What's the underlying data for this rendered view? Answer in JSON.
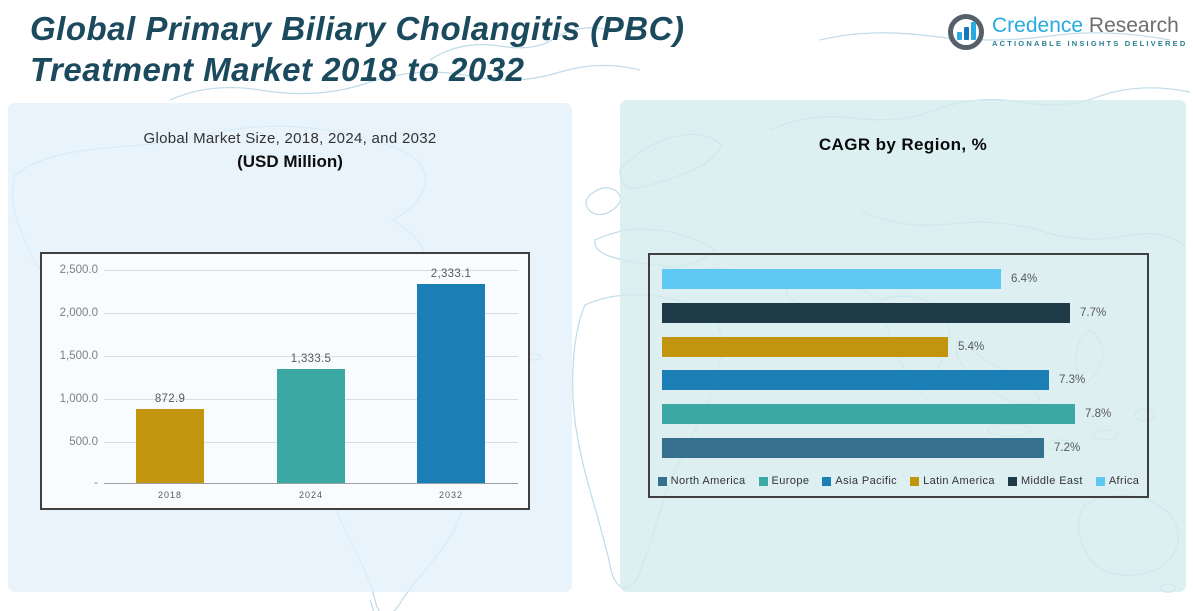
{
  "page": {
    "title_line1": "Global Primary Biliary Cholangitis (PBC)",
    "title_line2": "Treatment Market 2018 to 2032"
  },
  "logo": {
    "brand_first": "Credence",
    "brand_second": " Research",
    "tagline": "ACTIONABLE INSIGHTS DELIVERED",
    "icon": "bar-chart-in-circle-icon",
    "brand_color": "#29abe2",
    "secondary_color": "#6d6e71"
  },
  "left_chart": {
    "subtitle": "Global Market Size, 2018, 2024, and 2032",
    "unit_label": "(USD Million)"
  },
  "right_chart": {
    "title": "CAGR by Region, %"
  },
  "colors": {
    "gold": "#c3940e",
    "teal": "#3ba8a3",
    "blue": "#1b7fb5",
    "steel_blue": "#35708e",
    "dark_navy": "#1e3a47",
    "sky_blue": "#5ec7f2",
    "title_teal": "#1b4a5e",
    "panel_left": "#e1f0fa",
    "panel_right": "#d3ebee"
  },
  "chart_data": [
    {
      "type": "bar",
      "title": "Global Market Size, 2018, 2024, and 2032 (USD Million)",
      "categories": [
        "2018",
        "2024",
        "2032"
      ],
      "values": [
        872.9,
        1333.5,
        2333.1
      ],
      "value_labels": [
        "872.9",
        "1,333.5",
        "2,333.1"
      ],
      "bar_colors": [
        "#c3940e",
        "#3ba8a3",
        "#1b7fb5"
      ],
      "xlabel": "",
      "ylabel": "",
      "ylim": [
        0,
        2500
      ],
      "yticks": [
        2500,
        2000,
        1500,
        1000,
        500,
        0
      ],
      "ytick_labels": [
        "2,500.0",
        "2,000.0",
        "1,500.0",
        "1,000.0",
        "500.0",
        "-"
      ],
      "grid": true,
      "legend_position": "none"
    },
    {
      "type": "bar",
      "orientation": "horizontal",
      "title": "CAGR by Region, %",
      "categories": [
        "Africa",
        "Middle East",
        "Latin America",
        "Asia Pacific",
        "Europe",
        "North America"
      ],
      "values": [
        6.4,
        7.7,
        5.4,
        7.3,
        7.8,
        7.2
      ],
      "value_labels": [
        "6.4%",
        "7.7%",
        "5.4%",
        "7.3%",
        "7.8%",
        "7.2%"
      ],
      "bar_colors": [
        "#5ec7f2",
        "#1e3a47",
        "#c3940e",
        "#1b7fb5",
        "#3ba8a3",
        "#35708e"
      ],
      "xlim": [
        0,
        9
      ],
      "grid": false,
      "legend": [
        "North America",
        "Europe",
        "Asia Pacific",
        "Latin America",
        "Middle East",
        "Africa"
      ],
      "legend_colors": [
        "#35708e",
        "#3ba8a3",
        "#1b7fb5",
        "#c3940e",
        "#1e3a47",
        "#5ec7f2"
      ],
      "legend_position": "bottom"
    }
  ]
}
